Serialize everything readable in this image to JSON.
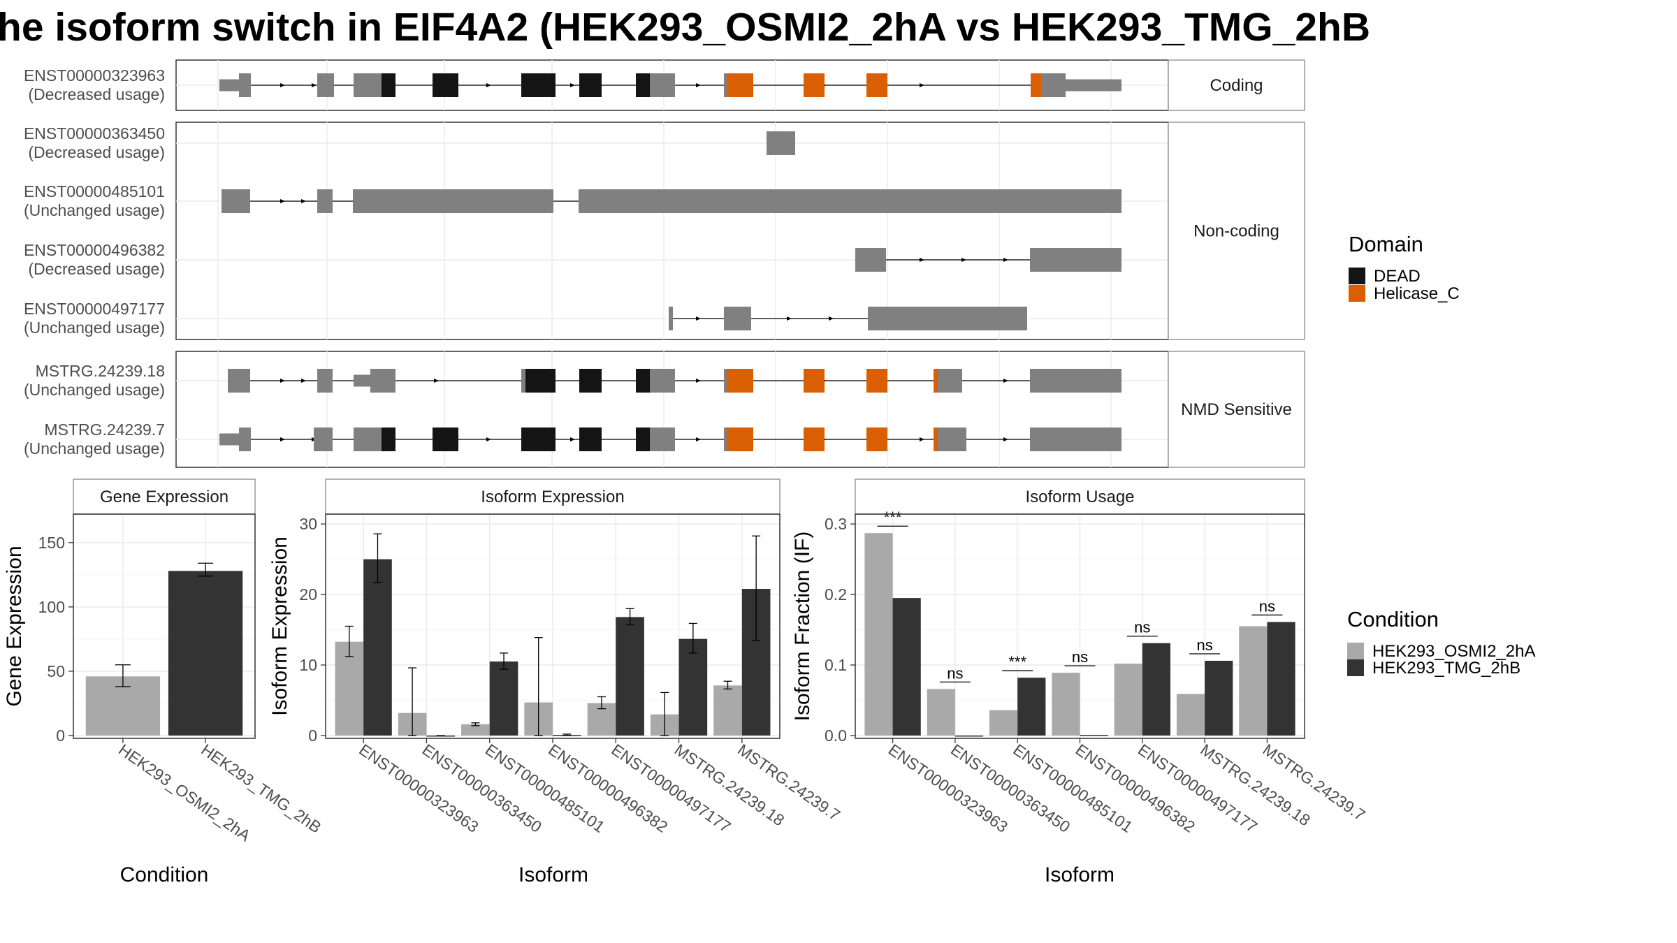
{
  "title": "he isoform switch in EIF4A2 (HEK293_OSMI2_2hA vs HEK293_TMG_2hB",
  "colors": {
    "exon": "#808080",
    "dead": "#141414",
    "helicase": "#d95f02",
    "cond_a": "#a9a9a9",
    "cond_b": "#333333"
  },
  "structure": {
    "groups": [
      {
        "label": "Coding",
        "tracks": [
          0
        ]
      },
      {
        "label": "Non-coding",
        "tracks": [
          1,
          2,
          3,
          4
        ]
      },
      {
        "label": "NMD Sensitive",
        "tracks": [
          5,
          6
        ]
      }
    ],
    "tracks": [
      {
        "id": "ENST00000323963",
        "usage": "(Decreased usage)"
      },
      {
        "id": "ENST00000363450",
        "usage": "(Decreased usage)"
      },
      {
        "id": "ENST00000485101",
        "usage": "(Unchanged usage)"
      },
      {
        "id": "ENST00000496382",
        "usage": "(Decreased usage)"
      },
      {
        "id": "ENST00000497177",
        "usage": "(Unchanged usage)"
      },
      {
        "id": "MSTRG.24239.18",
        "usage": "(Unchanged usage)"
      },
      {
        "id": "MSTRG.24239.7",
        "usage": "(Unchanged usage)"
      }
    ]
  },
  "legend_domain": {
    "title": "Domain",
    "items": [
      {
        "label": "DEAD",
        "color": "#141414"
      },
      {
        "label": "Helicase_C",
        "color": "#d95f02"
      }
    ]
  },
  "legend_condition": {
    "title": "Condition",
    "items": [
      {
        "label": "HEK293_OSMI2_2hA",
        "color": "#a9a9a9"
      },
      {
        "label": "HEK293_TMG_2hB",
        "color": "#333333"
      }
    ]
  },
  "chart_data": [
    {
      "type": "bar",
      "title": "Gene Expression",
      "xlabel": "Condition",
      "ylabel": "Gene Expression",
      "ylim": [
        0,
        170
      ],
      "yticks": [
        0,
        50,
        100,
        150
      ],
      "categories": [
        "HEK293_OSMI2_2hA",
        "HEK293_TMG_2hB"
      ],
      "values": [
        46,
        128
      ],
      "errors": [
        [
          38,
          55
        ],
        [
          124,
          134
        ]
      ]
    },
    {
      "type": "bar",
      "title": "Isoform Expression",
      "xlabel": "Isoform",
      "ylabel": "Isoform Expression",
      "ylim": [
        0,
        31
      ],
      "yticks": [
        0,
        10,
        20,
        30
      ],
      "categories": [
        "ENST00000323963",
        "ENST00000363450",
        "ENST00000485101",
        "ENST00000496382",
        "ENST00000497177",
        "MSTRG.24239.18",
        "MSTRG.24239.7"
      ],
      "series": [
        {
          "name": "HEK293_OSMI2_2hA",
          "values": [
            13.3,
            3.2,
            1.6,
            4.7,
            4.6,
            3.0,
            7.1
          ],
          "errors": [
            [
              11.2,
              15.5
            ],
            [
              0,
              9.6
            ],
            [
              1.4,
              1.8
            ],
            [
              0,
              13.9
            ],
            [
              3.8,
              5.5
            ],
            [
              0,
              6.1
            ],
            [
              6.6,
              7.7
            ]
          ]
        },
        {
          "name": "HEK293_TMG_2hB",
          "values": [
            25.0,
            0.0,
            10.5,
            0.1,
            16.8,
            13.7,
            20.8
          ],
          "errors": [
            [
              21.7,
              28.6
            ],
            [
              0,
              0
            ],
            [
              9.4,
              11.7
            ],
            [
              0,
              0.2
            ],
            [
              15.7,
              18.0
            ],
            [
              11.7,
              15.9
            ],
            [
              13.5,
              28.3
            ]
          ]
        }
      ]
    },
    {
      "type": "bar",
      "title": "Isoform Usage",
      "xlabel": "Isoform",
      "ylabel": "Isoform Fraction (IF)",
      "ylim": [
        0,
        0.31
      ],
      "yticks": [
        0.0,
        0.1,
        0.2,
        0.3
      ],
      "categories": [
        "ENST00000323963",
        "ENST00000363450",
        "ENST00000485101",
        "ENST00000496382",
        "ENST00000497177",
        "MSTRG.24239.18",
        "MSTRG.24239.7"
      ],
      "series": [
        {
          "name": "HEK293_OSMI2_2hA",
          "values": [
            0.287,
            0.066,
            0.036,
            0.089,
            0.102,
            0.059,
            0.155
          ]
        },
        {
          "name": "HEK293_TMG_2hB",
          "values": [
            0.195,
            0.0,
            0.082,
            0.001,
            0.131,
            0.106,
            0.161
          ]
        }
      ],
      "significance": [
        "***",
        "ns",
        "***",
        "ns",
        "ns",
        "ns",
        "ns"
      ]
    }
  ]
}
